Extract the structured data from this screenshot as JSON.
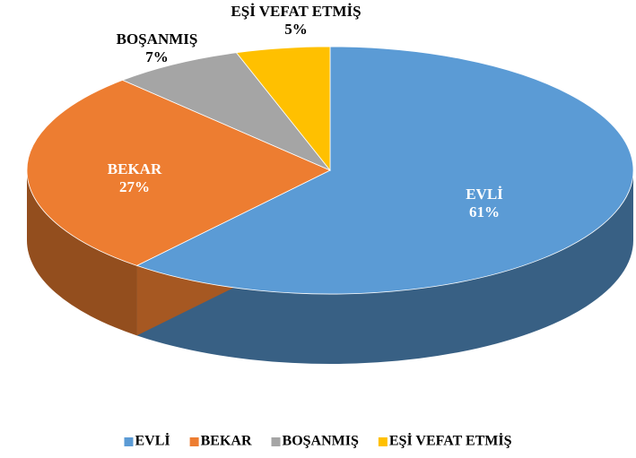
{
  "chart_data": {
    "type": "pie3d",
    "categories": [
      "EVLİ",
      "BEKAR",
      "BOŞANMIŞ",
      "EŞİ VEFAT ETMİŞ"
    ],
    "values": [
      61,
      27,
      7,
      5
    ],
    "value_labels": [
      "61%",
      "27%",
      "7%",
      "5%"
    ],
    "colors": [
      "#5b9bd5",
      "#ed7d31",
      "#a5a5a5",
      "#ffc000"
    ],
    "legend": "bottom"
  }
}
